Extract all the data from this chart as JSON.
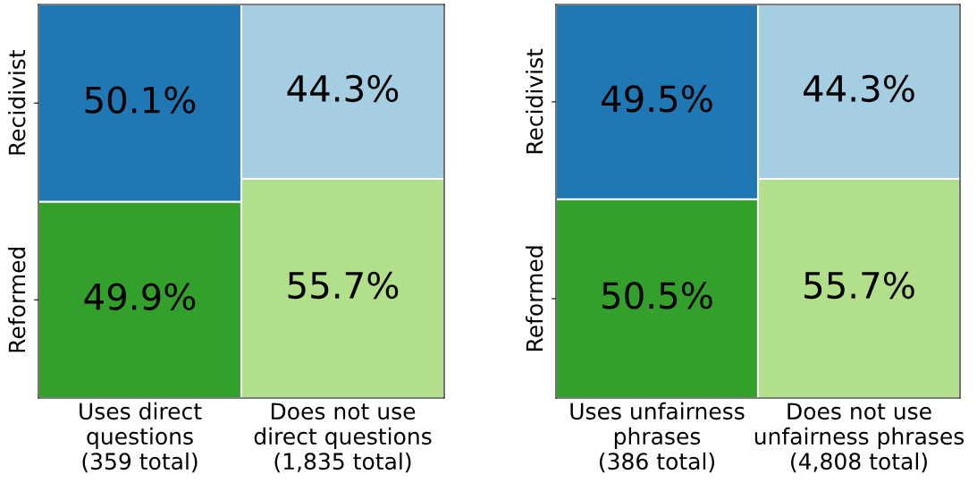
{
  "chart_data": [
    {
      "type": "bar",
      "stacked": true,
      "categories": [
        "Uses direct\nquestions\n(359 total)",
        "Does not use\ndirect questions\n(1,835 total)"
      ],
      "ylim": [
        0,
        100
      ],
      "series": [
        {
          "name": "Reformed",
          "colors": [
            "#33a02c",
            "#b2df8a"
          ],
          "values": [
            49.9,
            55.7
          ],
          "value_labels": [
            "49.9%",
            "55.7%"
          ]
        },
        {
          "name": "Recidivist",
          "colors": [
            "#1f78b4",
            "#a6cee3"
          ],
          "values": [
            50.1,
            44.3
          ],
          "value_labels": [
            "50.1%",
            "44.3%"
          ]
        }
      ]
    },
    {
      "type": "bar",
      "stacked": true,
      "categories": [
        "Uses unfairness\nphrases\n(386 total)",
        "Does not use\nunfairness phrases\n(4,808 total)"
      ],
      "ylim": [
        0,
        100
      ],
      "series": [
        {
          "name": "Reformed",
          "colors": [
            "#33a02c",
            "#b2df8a"
          ],
          "values": [
            50.5,
            55.7
          ],
          "value_labels": [
            "50.5%",
            "55.7%"
          ]
        },
        {
          "name": "Recidivist",
          "colors": [
            "#1f78b4",
            "#a6cee3"
          ],
          "values": [
            49.5,
            44.3
          ],
          "value_labels": [
            "49.5%",
            "44.3%"
          ]
        }
      ]
    }
  ]
}
